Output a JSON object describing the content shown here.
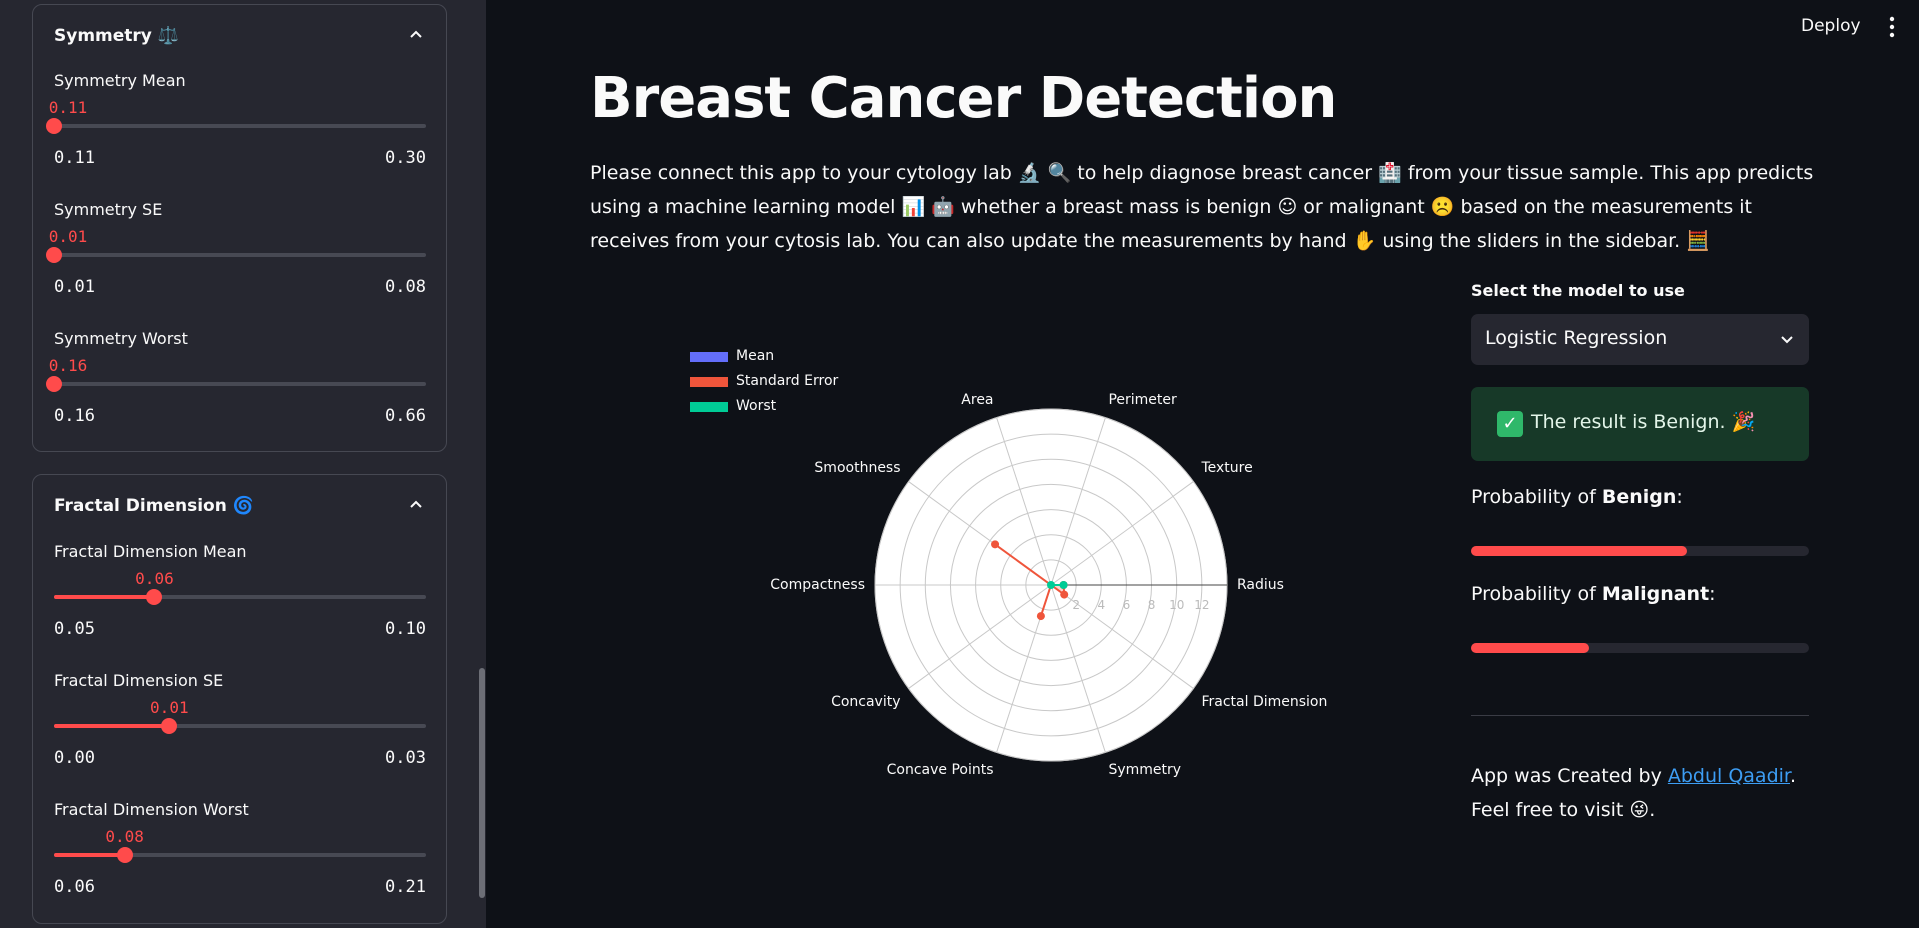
{
  "sidebar": {
    "symmetry": {
      "header": "Symmetry ⚖️",
      "sliders": [
        {
          "label": "Symmetry Mean",
          "value": "0.11",
          "min": "0.11",
          "max": "0.30",
          "fraction": 0.0
        },
        {
          "label": "Symmetry SE",
          "value": "0.01",
          "min": "0.01",
          "max": "0.08",
          "fraction": 0.0
        },
        {
          "label": "Symmetry Worst",
          "value": "0.16",
          "min": "0.16",
          "max": "0.66",
          "fraction": 0.0
        }
      ]
    },
    "fractal": {
      "header": "Fractal Dimension 🌀",
      "sliders": [
        {
          "label": "Fractal Dimension Mean",
          "value": "0.06",
          "min": "0.05",
          "max": "0.10",
          "fraction": 0.27
        },
        {
          "label": "Fractal Dimension SE",
          "value": "0.01",
          "min": "0.00",
          "max": "0.03",
          "fraction": 0.31
        },
        {
          "label": "Fractal Dimension Worst",
          "value": "0.08",
          "min": "0.06",
          "max": "0.21",
          "fraction": 0.19
        }
      ]
    }
  },
  "header": {
    "deploy_label": "Deploy",
    "menu_icon": "kebab-menu-icon"
  },
  "main": {
    "title": "Breast Cancer Detection",
    "description": "Please connect this app to your cytology lab 🔬 🔍 to help diagnose breast cancer 🏥 from your tissue sample. This app predicts using a machine learning model 📊 🤖 whether a breast mass is benign ☺ or malignant ☹️ based on the measurements it receives from your cytosis lab. You can also update the measurements by hand ✋ using the sliders in the sidebar. 🧮"
  },
  "chart_data": {
    "type": "radar",
    "categories": [
      "Radius",
      "Texture",
      "Perimeter",
      "Area",
      "Smoothness",
      "Compactness",
      "Concavity",
      "Concave Points",
      "Symmetry",
      "Fractal Dimension"
    ],
    "radial_ticks": [
      "2",
      "4",
      "6",
      "8",
      "10",
      "12"
    ],
    "radial_range": [
      0,
      14
    ],
    "series": [
      {
        "name": "Mean",
        "color": "#636efa",
        "values": [
          0.0,
          0.0,
          0.0,
          0.0,
          0.0,
          0.0,
          0.0,
          0.0,
          0.0,
          0.0
        ]
      },
      {
        "name": "Standard Error",
        "color": "#ef553b",
        "values": [
          1.0,
          0.0,
          0.0,
          0.0,
          5.5,
          0.0,
          0.0,
          2.6,
          0.0,
          1.3
        ]
      },
      {
        "name": "Worst",
        "color": "#00cc96",
        "values": [
          1.0,
          0.0,
          0.0,
          0.0,
          0.0,
          0.0,
          0.0,
          0.0,
          0.0,
          0.0
        ]
      }
    ],
    "legend_position": "top-left",
    "grid": true
  },
  "prediction": {
    "model_label": "Select the model to use",
    "model_value": "Logistic Regression",
    "result": "The result is Benign. 🎉",
    "benign_prefix": "Probability of ",
    "benign_bold": "Benign",
    "malignant_prefix": "Probability of ",
    "malignant_bold": "Malignant",
    "colon": ":",
    "benign_prob": 0.64,
    "malignant_prob": 0.35,
    "credit_prefix": "App was Created by ",
    "credit_link": "Abdul Qaadir",
    "credit_suffix": ". Feel free to visit 😜."
  },
  "colors": {
    "accent": "#ff4b4b",
    "background": "#0e1117",
    "sidebar": "#262730",
    "success_bg": "#173928",
    "link": "#3d9df3"
  }
}
